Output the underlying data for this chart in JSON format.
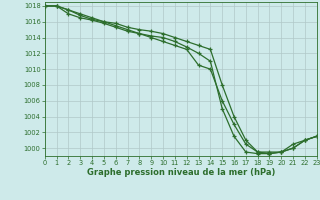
{
  "title": "Graphe pression niveau de la mer (hPa)",
  "background_color": "#ceeaea",
  "grid_color": "#b0c8c8",
  "line_color": "#2d6e2d",
  "xlim": [
    0,
    23
  ],
  "ylim": [
    999.0,
    1018.5
  ],
  "yticks": [
    1000,
    1002,
    1004,
    1006,
    1008,
    1010,
    1012,
    1014,
    1016,
    1018
  ],
  "xticks": [
    0,
    1,
    2,
    3,
    4,
    5,
    6,
    7,
    8,
    9,
    10,
    11,
    12,
    13,
    14,
    15,
    16,
    17,
    18,
    19,
    20,
    21,
    22,
    23
  ],
  "series": [
    [
      1018.0,
      1018.0,
      1017.5,
      1017.0,
      1016.5,
      1016.0,
      1015.5,
      1015.0,
      1014.5,
      1014.0,
      1013.5,
      1013.0,
      1012.5,
      1010.5,
      1010.0,
      1006.0,
      1003.0,
      1000.5,
      999.5,
      999.5,
      999.5,
      1000.5,
      1001.0,
      1001.5
    ],
    [
      1018.0,
      1018.0,
      1017.0,
      1016.5,
      1016.2,
      1015.8,
      1015.3,
      1014.8,
      1014.5,
      1014.2,
      1014.0,
      1013.5,
      1012.8,
      1012.0,
      1011.0,
      1005.0,
      1001.5,
      999.5,
      999.3,
      999.3,
      999.5,
      1000.0,
      1001.0,
      1001.5
    ],
    [
      1018.0,
      1018.0,
      1017.5,
      1016.8,
      1016.3,
      1016.0,
      1015.8,
      1015.3,
      1015.0,
      1014.8,
      1014.5,
      1014.0,
      1013.5,
      1013.0,
      1012.5,
      1008.0,
      1004.0,
      1001.0,
      999.5,
      999.3,
      999.5,
      1000.0,
      1001.0,
      1001.5
    ]
  ],
  "title_fontsize": 6.0,
  "tick_fontsize": 4.8
}
